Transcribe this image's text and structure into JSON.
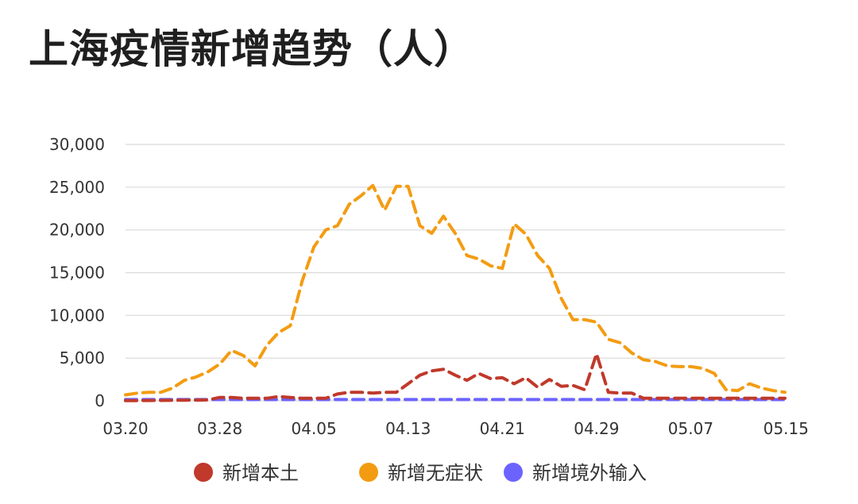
{
  "chart_data": {
    "type": "line",
    "title": "上海疫情新增趋势（人）",
    "x": [
      "03.20",
      "03.21",
      "03.22",
      "03.23",
      "03.24",
      "03.25",
      "03.26",
      "03.27",
      "03.28",
      "03.29",
      "03.30",
      "03.31",
      "04.01",
      "04.02",
      "04.03",
      "04.04",
      "04.05",
      "04.06",
      "04.07",
      "04.08",
      "04.09",
      "04.10",
      "04.11",
      "04.12",
      "04.13",
      "04.14",
      "04.15",
      "04.16",
      "04.17",
      "04.18",
      "04.19",
      "04.20",
      "04.21",
      "04.22",
      "04.23",
      "04.24",
      "04.25",
      "04.26",
      "04.27",
      "04.28",
      "04.29",
      "04.30",
      "05.01",
      "05.02",
      "05.03",
      "05.04",
      "05.05",
      "05.06",
      "05.07",
      "05.08",
      "05.09",
      "05.10",
      "05.11",
      "05.12",
      "05.13",
      "05.14",
      "05.15"
    ],
    "x_ticks": [
      "03.20",
      "03.28",
      "04.05",
      "04.13",
      "04.21",
      "04.29",
      "05.07",
      "05.15"
    ],
    "y_ticks": [
      "0",
      "5,000",
      "10,000",
      "15,000",
      "20,000",
      "25,000",
      "30,000"
    ],
    "ylim": [
      0,
      30000
    ],
    "grid": true,
    "legend_position": "bottom",
    "series": [
      {
        "name": "新增本土",
        "color": "#c0392b",
        "values": [
          20,
          30,
          40,
          50,
          60,
          70,
          80,
          100,
          400,
          400,
          300,
          300,
          300,
          500,
          400,
          300,
          300,
          300,
          800,
          1000,
          1000,
          900,
          1000,
          1000,
          2000,
          3000,
          3500,
          3700,
          3000,
          2400,
          3200,
          2600,
          2700,
          2000,
          2700,
          1600,
          2500,
          1700,
          1800,
          1300,
          5500,
          1000,
          900,
          900,
          300,
          300,
          300,
          300,
          300,
          300,
          300,
          300,
          300,
          300,
          300,
          300,
          300
        ]
      },
      {
        "name": "新增无症状",
        "color": "#f39c12",
        "values": [
          700,
          900,
          1000,
          1000,
          1500,
          2400,
          2800,
          3400,
          4300,
          5900,
          5300,
          4100,
          6500,
          8000,
          8800,
          14000,
          18000,
          20000,
          20500,
          23000,
          24000,
          25200,
          22300,
          25100,
          25100,
          20500,
          19600,
          21600,
          19600,
          17000,
          16600,
          15800,
          15500,
          20700,
          19500,
          17000,
          15500,
          12000,
          9500,
          9500,
          9200,
          7200,
          6800,
          5600,
          4800,
          4600,
          4100,
          4000,
          4000,
          3800,
          3200,
          1300,
          1200,
          2000,
          1500,
          1200,
          1000
        ]
      },
      {
        "name": "新增境外输入",
        "color": "#6c63ff",
        "values": [
          150,
          150,
          150,
          150,
          150,
          150,
          150,
          150,
          150,
          150,
          150,
          150,
          150,
          150,
          150,
          150,
          150,
          150,
          150,
          150,
          150,
          150,
          150,
          150,
          150,
          150,
          150,
          150,
          150,
          150,
          150,
          150,
          150,
          150,
          150,
          150,
          150,
          150,
          150,
          150,
          150,
          150,
          150,
          150,
          150,
          150,
          150,
          150,
          150,
          150,
          150,
          150,
          150,
          150,
          150,
          150,
          150
        ]
      }
    ]
  }
}
